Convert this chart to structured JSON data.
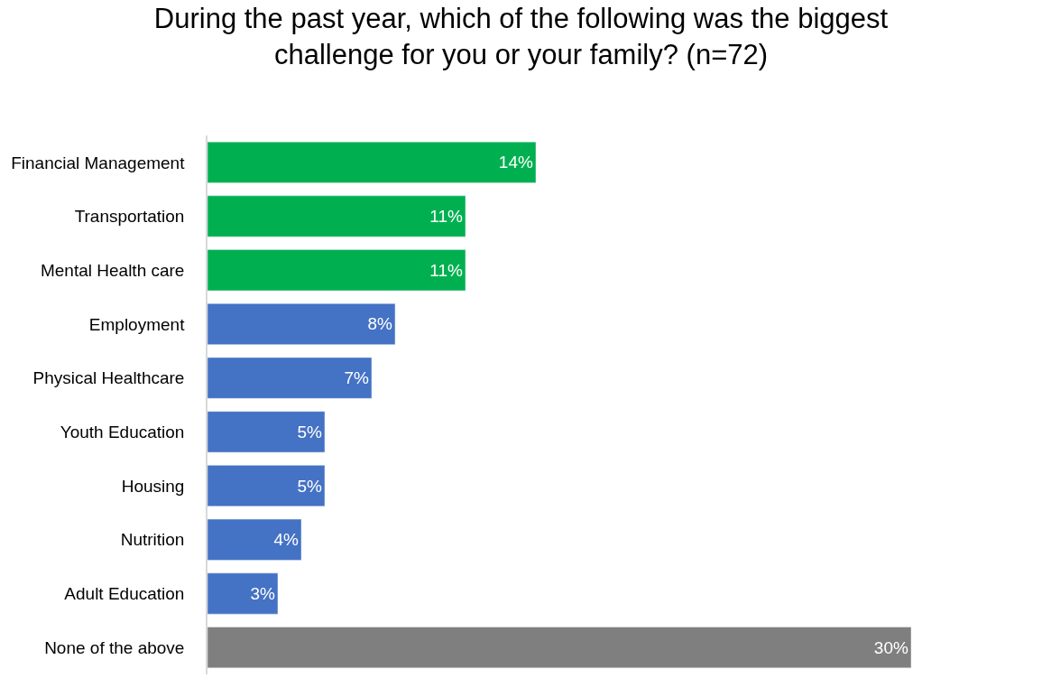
{
  "chart_data": {
    "type": "bar",
    "orientation": "horizontal",
    "title": "During the past year, which of the following was the biggest\nchallenge for you or your family? (n=72)",
    "categories": [
      "Financial Management",
      "Transportation",
      "Mental Health care",
      "Employment",
      "Physical Healthcare",
      "Youth Education",
      "Housing",
      "Nutrition",
      "Adult Education",
      "None of the above"
    ],
    "values": [
      14,
      11,
      11,
      8,
      7,
      5,
      5,
      4,
      3,
      30
    ],
    "colors": [
      "#00b050",
      "#00b050",
      "#00b050",
      "#4472c4",
      "#4472c4",
      "#4472c4",
      "#4472c4",
      "#4472c4",
      "#4472c4",
      "#7f7f7f"
    ],
    "value_labels": [
      "14%",
      "11%",
      "11%",
      "8%",
      "7%",
      "5%",
      "5%",
      "4%",
      "3%",
      "30%"
    ],
    "legend": false
  }
}
